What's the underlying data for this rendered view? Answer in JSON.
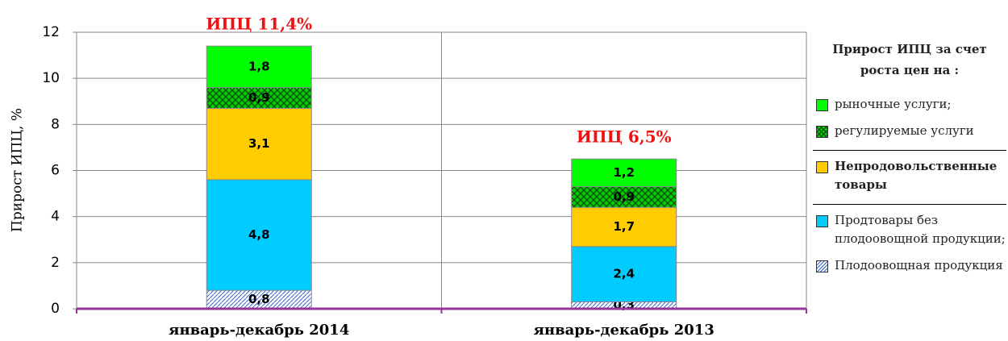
{
  "chart_data": {
    "type": "stacked_bar",
    "y_label": "Прирост ИПЦ, %",
    "legend_title": "Прирост ИПЦ за счет роста цен на :",
    "categories": [
      "январь-декабрь 2014",
      "январь-декабрь 2013"
    ],
    "annotations": [
      "ИПЦ 11,4%",
      "ИПЦ 6,5%"
    ],
    "series": [
      {
        "name": "Плодоовощная продукция",
        "color": "#3366cc",
        "pattern": "hatch",
        "values": [
          0.8,
          0.3
        ],
        "value_labels": [
          "0,8",
          "0,3"
        ]
      },
      {
        "name": "Продтовары без плодоовощной продукции;",
        "color": "#00ccff",
        "values": [
          4.8,
          2.4
        ],
        "value_labels": [
          "4,8",
          "2,4"
        ]
      },
      {
        "name": "Непродовольст­венные товары",
        "color": "#ffcc00",
        "values": [
          3.1,
          1.7
        ],
        "value_labels": [
          "3,1",
          "1,7"
        ]
      },
      {
        "name": "регулируемые услуги",
        "color": "#00cc00",
        "pattern": "cross",
        "values": [
          0.9,
          0.9
        ],
        "value_labels": [
          "0,9",
          "0,9"
        ]
      },
      {
        "name": "рыночные услуги;",
        "color": "#00ff00",
        "values": [
          1.8,
          1.2
        ],
        "value_labels": [
          "1,8",
          "1,2"
        ]
      }
    ],
    "ylim": [
      0,
      12
    ],
    "yticks": [
      0,
      2,
      4,
      6,
      8,
      10,
      12
    ],
    "grid": true
  }
}
